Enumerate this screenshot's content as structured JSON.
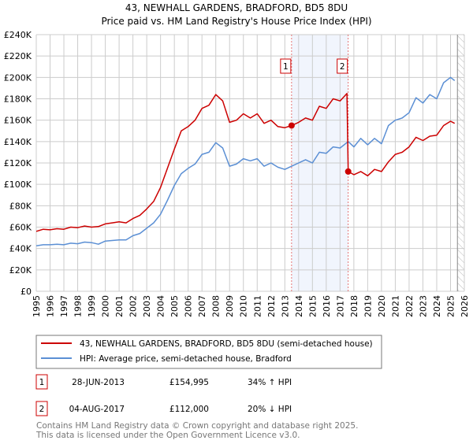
{
  "chart_data": {
    "type": "line",
    "title": "43, NEWHALL GARDENS, BRADFORD, BD5 8DU",
    "subtitle": "Price paid vs. HM Land Registry's House Price Index (HPI)",
    "xlabel": "",
    "ylabel": "",
    "xlim": [
      1995,
      2026
    ],
    "ylim": [
      0,
      240000
    ],
    "grid": true,
    "x_ticks": [
      "1995",
      "1996",
      "1997",
      "1998",
      "1999",
      "2000",
      "2001",
      "2002",
      "2003",
      "2004",
      "2005",
      "2006",
      "2007",
      "2008",
      "2009",
      "2010",
      "2011",
      "2012",
      "2013",
      "2014",
      "2015",
      "2016",
      "2017",
      "2018",
      "2019",
      "2020",
      "2021",
      "2022",
      "2023",
      "2024",
      "2025",
      "2026"
    ],
    "y_ticks": [
      {
        "value": 0,
        "label": "£0"
      },
      {
        "value": 20000,
        "label": "£20K"
      },
      {
        "value": 40000,
        "label": "£40K"
      },
      {
        "value": 60000,
        "label": "£60K"
      },
      {
        "value": 80000,
        "label": "£80K"
      },
      {
        "value": 100000,
        "label": "£100K"
      },
      {
        "value": 120000,
        "label": "£120K"
      },
      {
        "value": 140000,
        "label": "£140K"
      },
      {
        "value": 160000,
        "label": "£160K"
      },
      {
        "value": 180000,
        "label": "£180K"
      },
      {
        "value": 200000,
        "label": "£200K"
      },
      {
        "value": 220000,
        "label": "£220K"
      },
      {
        "value": 240000,
        "label": "£240K"
      }
    ],
    "shaded_range": [
      2013.49,
      2017.59
    ],
    "hatched_from": 2025.5,
    "series": [
      {
        "name": "43, NEWHALL GARDENS, BRADFORD, BD5 8DU (semi-detached house)",
        "color": "#cc0000",
        "x": [
          1995,
          1995.5,
          1996,
          1996.5,
          1997,
          1997.5,
          1998,
          1998.5,
          1999,
          1999.5,
          2000,
          2000.5,
          2001,
          2001.5,
          2002,
          2002.5,
          2003,
          2003.5,
          2004,
          2004.5,
          2005,
          2005.5,
          2006,
          2006.5,
          2007,
          2007.5,
          2008,
          2008.5,
          2009,
          2009.5,
          2010,
          2010.5,
          2011,
          2011.5,
          2012,
          2012.5,
          2013,
          2013.49,
          2014,
          2014.5,
          2015,
          2015.5,
          2016,
          2016.5,
          2017,
          2017.5,
          2017.59,
          2018,
          2018.5,
          2019,
          2019.5,
          2020,
          2020.5,
          2021,
          2021.5,
          2022,
          2022.5,
          2023,
          2023.5,
          2024,
          2024.5,
          2025,
          2025.3
        ],
        "y": [
          56000,
          58000,
          57500,
          58500,
          58000,
          60000,
          59500,
          61000,
          60000,
          60500,
          63000,
          64000,
          65000,
          64000,
          68000,
          71000,
          77000,
          84000,
          97000,
          115000,
          133000,
          150000,
          154000,
          160000,
          171000,
          174000,
          184000,
          178000,
          158000,
          160000,
          166000,
          162000,
          166000,
          157000,
          160000,
          154000,
          153000,
          155000,
          158000,
          162000,
          160000,
          173000,
          171000,
          180000,
          178000,
          185000,
          112000,
          109000,
          112000,
          108000,
          114000,
          112000,
          121000,
          128000,
          130000,
          135000,
          144000,
          141000,
          145000,
          146000,
          155000,
          159000,
          157000
        ]
      },
      {
        "name": "HPI: Average price, semi-detached house, Bradford",
        "color": "#5b8fd4",
        "x": [
          1995,
          1995.5,
          1996,
          1996.5,
          1997,
          1997.5,
          1998,
          1998.5,
          1999,
          1999.5,
          2000,
          2000.5,
          2001,
          2001.5,
          2002,
          2002.5,
          2003,
          2003.5,
          2004,
          2004.5,
          2005,
          2005.5,
          2006,
          2006.5,
          2007,
          2007.5,
          2008,
          2008.5,
          2009,
          2009.5,
          2010,
          2010.5,
          2011,
          2011.5,
          2012,
          2012.5,
          2013,
          2013.5,
          2014,
          2014.5,
          2015,
          2015.5,
          2016,
          2016.5,
          2017,
          2017.59,
          2018,
          2018.5,
          2019,
          2019.5,
          2020,
          2020.5,
          2021,
          2021.5,
          2022,
          2022.5,
          2023,
          2023.5,
          2024,
          2024.5,
          2025,
          2025.3
        ],
        "y": [
          42500,
          43500,
          43500,
          44000,
          43500,
          45000,
          44500,
          46000,
          45500,
          44000,
          47000,
          47500,
          48000,
          48000,
          52000,
          54000,
          59000,
          64000,
          72000,
          85000,
          99000,
          110000,
          115000,
          119000,
          128000,
          130000,
          139000,
          134000,
          117000,
          119000,
          124000,
          122000,
          124000,
          117000,
          120000,
          116000,
          114000,
          117000,
          120000,
          123000,
          120000,
          130000,
          129000,
          135000,
          134000,
          140000,
          135000,
          143000,
          137000,
          143000,
          138000,
          155000,
          160000,
          162000,
          167000,
          181000,
          176000,
          184000,
          180000,
          195000,
          200000,
          197000
        ]
      }
    ],
    "sales": [
      {
        "marker": "1",
        "x": 2013.49,
        "y": 154995
      },
      {
        "marker": "2",
        "x": 2017.59,
        "y": 112000
      }
    ]
  },
  "legend": {
    "property_label": "43, NEWHALL GARDENS, BRADFORD, BD5 8DU (semi-detached house)",
    "hpi_label": "HPI: Average price, semi-detached house, Bradford"
  },
  "transactions": [
    {
      "marker": "1",
      "date": "28-JUN-2013",
      "price": "£154,995",
      "hpi": "34% ↑ HPI"
    },
    {
      "marker": "2",
      "date": "04-AUG-2017",
      "price": "£112,000",
      "hpi": "20% ↓ HPI"
    }
  ],
  "footer": {
    "line1": "Contains HM Land Registry data © Crown copyright and database right 2025.",
    "line2": "This data is licensed under the Open Government Licence v3.0."
  }
}
